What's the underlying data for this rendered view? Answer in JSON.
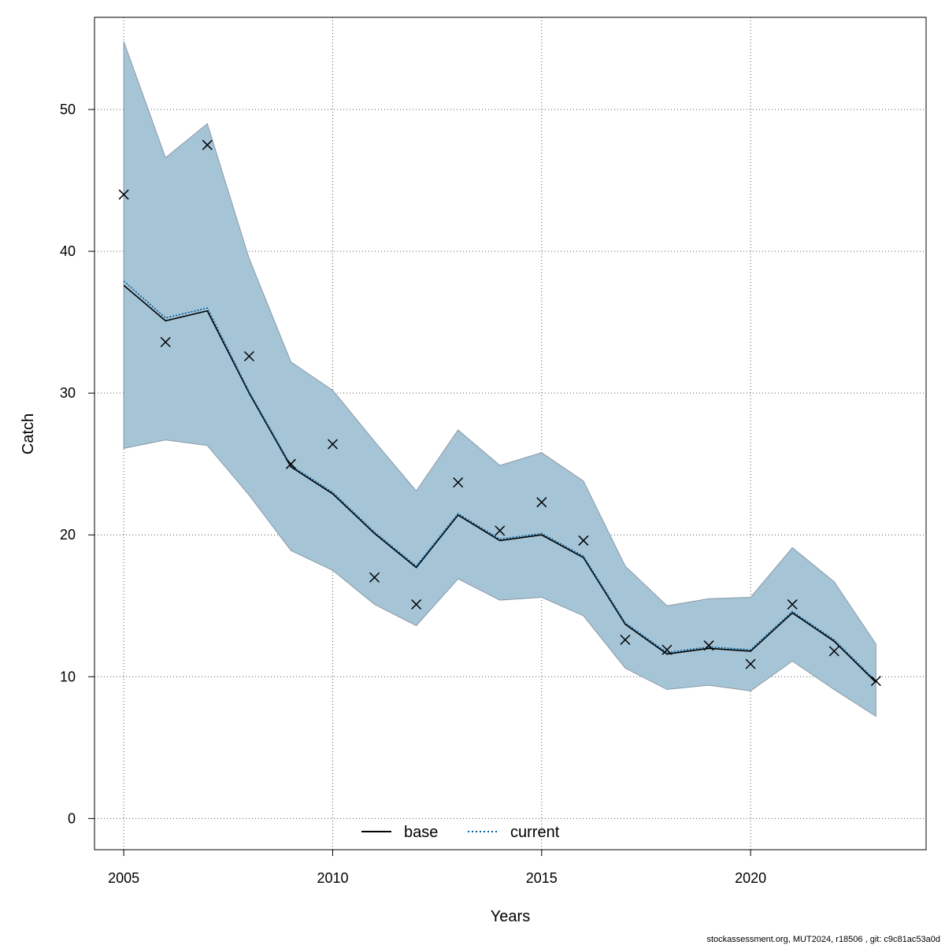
{
  "chart_data": {
    "type": "line",
    "title": "",
    "xlabel": "Years",
    "ylabel": "Catch",
    "xlim": [
      2004.3,
      2024.2
    ],
    "ylim": [
      -2.2,
      56.5
    ],
    "xticks": [
      2005,
      2010,
      2015,
      2020
    ],
    "yticks": [
      0,
      10,
      20,
      30,
      40,
      50
    ],
    "grid": true,
    "legend_position": "bottom-center",
    "x": [
      2005,
      2006,
      2007,
      2008,
      2009,
      2010,
      2011,
      2012,
      2013,
      2014,
      2015,
      2016,
      2017,
      2018,
      2019,
      2020,
      2021,
      2022,
      2023
    ],
    "band": {
      "upper": [
        54.8,
        46.6,
        49.0,
        39.5,
        32.2,
        30.2,
        26.6,
        23.1,
        27.4,
        24.9,
        25.8,
        23.8,
        17.8,
        15.0,
        15.5,
        15.6,
        19.1,
        16.7,
        12.3
      ],
      "lower": [
        26.1,
        26.7,
        26.3,
        22.8,
        18.9,
        17.5,
        15.1,
        13.6,
        16.9,
        15.4,
        15.6,
        14.3,
        10.6,
        9.1,
        9.4,
        9.0,
        11.1,
        9.1,
        7.2
      ],
      "color": "#a5c4d6",
      "edge_color": "#8a9aa8"
    },
    "series": [
      {
        "name": "base",
        "style": "solid",
        "color": "#000000",
        "values": [
          37.6,
          35.1,
          35.8,
          30.0,
          24.8,
          22.9,
          20.1,
          17.7,
          21.4,
          19.6,
          20.0,
          18.4,
          13.7,
          11.6,
          12.0,
          11.8,
          14.5,
          12.5,
          9.6
        ]
      },
      {
        "name": "current",
        "style": "dotted",
        "color": "#005b96",
        "values": [
          37.9,
          35.3,
          36.0,
          30.1,
          24.9,
          23.0,
          20.2,
          17.8,
          21.5,
          19.7,
          20.1,
          18.5,
          13.8,
          11.7,
          12.1,
          11.9,
          14.6,
          12.6,
          9.7
        ]
      }
    ],
    "observations": {
      "marker": "x",
      "color": "#000000",
      "values": [
        44.0,
        33.6,
        47.5,
        32.6,
        25.0,
        26.4,
        17.0,
        15.1,
        23.7,
        20.3,
        22.3,
        19.6,
        12.6,
        11.9,
        12.2,
        10.9,
        15.1,
        11.8,
        9.7
      ]
    }
  },
  "footer": "stockassessment.org, MUT2024, r18506 , git: c9c81ac53a0d"
}
